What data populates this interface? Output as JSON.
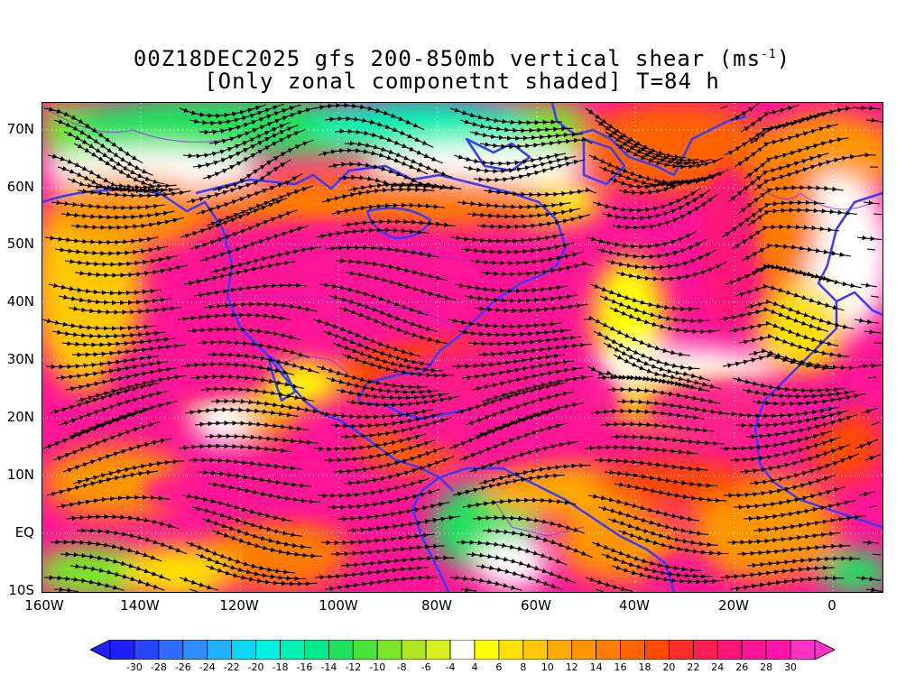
{
  "title": {
    "line1_main": "00Z18DEC2025 gfs 200-850mb vertical shear (ms",
    "line1_sup": "-1",
    "line1_end": ")",
    "line2": "[Only zonal componetnt shaded] T=84 h"
  },
  "axes": {
    "y_labels": [
      "70N",
      "60N",
      "50N",
      "40N",
      "30N",
      "20N",
      "10N",
      "EQ",
      "10S"
    ],
    "x_labels": [
      "160W",
      "140W",
      "120W",
      "100W",
      "80W",
      "60W",
      "40W",
      "20W",
      "0"
    ],
    "lon_range": [
      -160,
      10
    ],
    "lat_range": [
      -10,
      75
    ],
    "grid": "dotted"
  },
  "colorbar": {
    "labels": [
      "-30",
      "-28",
      "-26",
      "-24",
      "-22",
      "-20",
      "-18",
      "-16",
      "-14",
      "-12",
      "-10",
      "-8",
      "-6",
      "-4",
      "4",
      "6",
      "8",
      "10",
      "12",
      "14",
      "16",
      "18",
      "20",
      "22",
      "24",
      "26",
      "28",
      "30"
    ],
    "colors": [
      "#1e1eff",
      "#2846ff",
      "#2f6bff",
      "#2f8dff",
      "#20b2ff",
      "#0ad7f2",
      "#00f0e0",
      "#00f0b4",
      "#00ea8a",
      "#20e060",
      "#4be23a",
      "#7ae62a",
      "#aee622",
      "#d6f01e",
      "#ffffff",
      "#ffff00",
      "#ffe100",
      "#ffc800",
      "#ffaa00",
      "#ff9600",
      "#ff7d00",
      "#ff6400",
      "#ff4b00",
      "#ff2d28",
      "#ff1e50",
      "#ff1478",
      "#ff1496",
      "#ff14aa",
      "#ff32c8"
    ],
    "end_left_color": "#1e1eff",
    "end_right_color": "#ff32c8"
  },
  "legend_colors": {
    "coastline": "#3a3aff",
    "political": "#8a2be2",
    "streamline": "#000000"
  }
}
